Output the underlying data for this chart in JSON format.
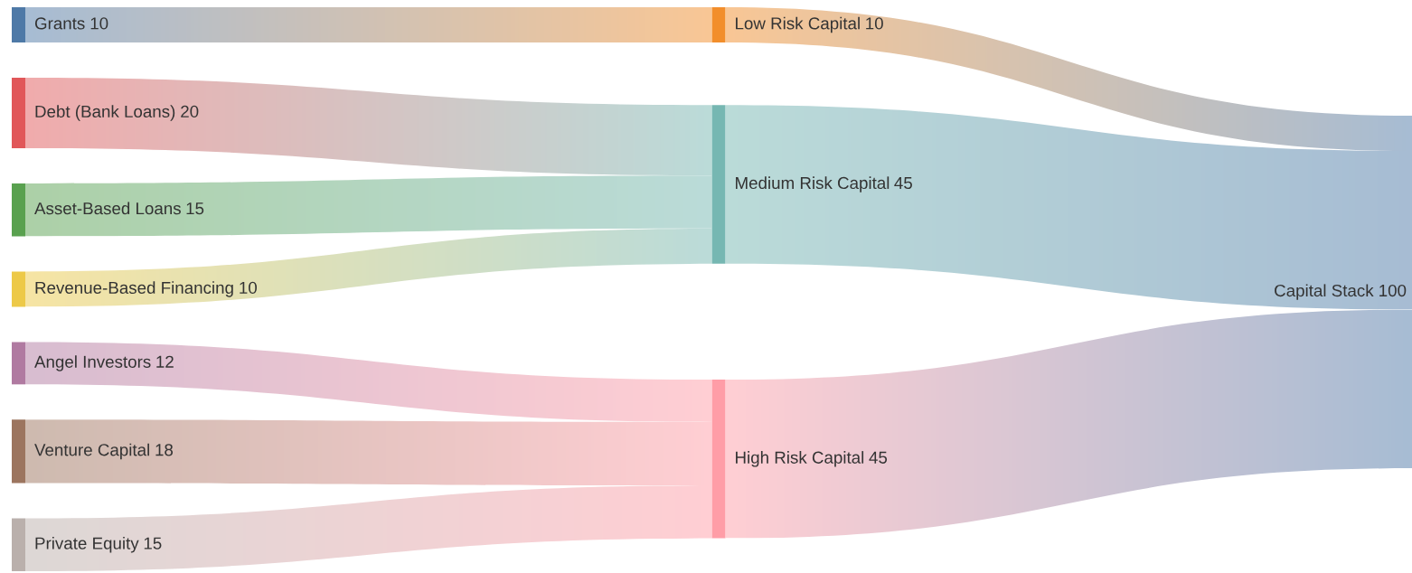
{
  "chart_data": {
    "type": "other",
    "categories": [
      "Grants",
      "Debt (Bank Loans)",
      "Asset-Based Loans",
      "Revenue-Based Financing",
      "Angel Investors",
      "Venture Capital",
      "Private Equity",
      "Low Risk Capital",
      "Medium Risk Capital",
      "High Risk Capital",
      "Capital Stack"
    ],
    "values": [
      null,
      null,
      null,
      null,
      null,
      null,
      null,
      null,
      null,
      null,
      100
    ],
    "data_labels": true,
    "series": [
      {
        "color": "#4e79a7",
        "values": [
          null,
          null,
          null,
          null,
          null,
          null,
          null,
          null,
          null,
          null,
          null
        ]
      },
      {
        "color": "#e15759",
        "values": [
          null,
          null,
          null,
          null,
          null,
          null,
          null,
          null,
          null,
          null,
          null
        ]
      },
      {
        "color": "#59a14f",
        "values": [
          null,
          null,
          null,
          null,
          null,
          null,
          null,
          null,
          null,
          null,
          null
        ]
      },
      {
        "color": "#edc948",
        "values": [
          null,
          null,
          null,
          null,
          null,
          null,
          null,
          null,
          null,
          null,
          null
        ]
      },
      {
        "color": "#b07aa1",
        "values": [
          null,
          null,
          null,
          null,
          null,
          null,
          null,
          null,
          null,
          null,
          null
        ]
      },
      {
        "color": "#9c755f",
        "values": [
          null,
          null,
          null,
          null,
          null,
          null,
          null,
          null,
          null,
          null,
          null
        ]
      },
      {
        "color": "#bab0ac",
        "values": [
          null,
          null,
          null,
          null,
          null,
          null,
          null,
          null,
          null,
          null,
          null
        ]
      },
      {
        "color": "#f28e2b",
        "values": [
          10,
          null,
          null,
          null,
          null,
          null,
          null,
          null,
          null,
          null,
          null
        ]
      },
      {
        "color": "#76b7b2",
        "values": [
          null,
          20,
          15,
          10,
          null,
          null,
          null,
          null,
          null,
          null,
          null
        ]
      },
      {
        "color": "#ff9da7",
        "values": [
          null,
          null,
          null,
          null,
          12,
          18,
          15,
          null,
          null,
          null,
          null
        ]
      },
      {
        "color": "#4e79a7",
        "values": [
          null,
          null,
          null,
          null,
          null,
          null,
          null,
          10,
          45,
          45,
          null
        ]
      }
    ]
  }
}
